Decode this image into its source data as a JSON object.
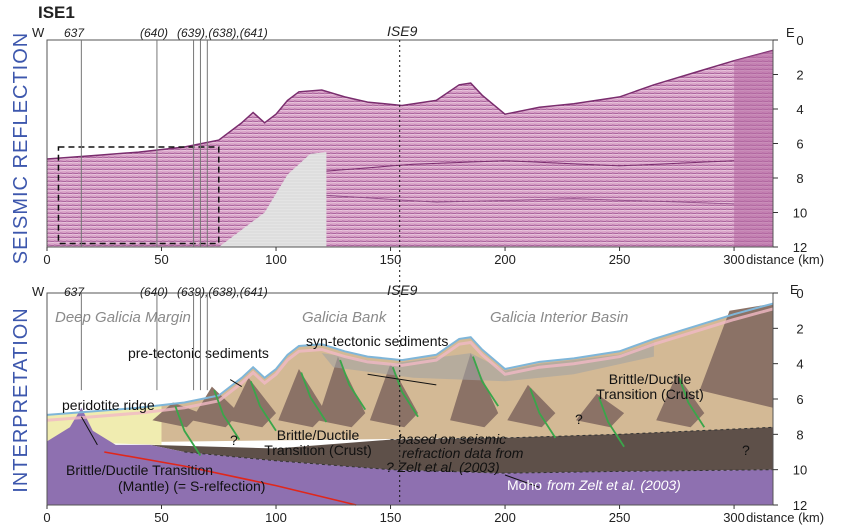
{
  "title": "ISE1",
  "ends": {
    "west": "W",
    "east": "E"
  },
  "wells": [
    "637",
    "(640)",
    "(639),(638),(641)"
  ],
  "profile": "ISE9",
  "x_axis": {
    "lim": [
      0,
      317
    ],
    "ticks": [
      0,
      50,
      100,
      150,
      200,
      250,
      300
    ],
    "label": "distance (km)"
  },
  "y_axis": {
    "lim": [
      0,
      12
    ],
    "ticks": [
      0,
      2,
      4,
      6,
      8,
      10,
      12
    ]
  },
  "panels": [
    "SEISMIC REFLECTION",
    "INTERPRETATION"
  ],
  "interpretation": {
    "regions": [
      "Deep Galicia Margin",
      "Galicia Bank",
      "Galicia Interior Basin"
    ],
    "pre_tectonic": "pre-tectonic sediments",
    "syn_tectonic": "syn-tectonic sediments",
    "ridge": "peridotite ridge",
    "crust_transition": [
      "Brittle/Ductile",
      "Transition (Crust)"
    ],
    "refraction_note": [
      "based on seismic",
      "refraction data from",
      "? Zelt et al. (2003)"
    ],
    "mantle_transition": [
      "Brittle/Ductile Transition",
      "(Mantle) (= S-relfection)"
    ],
    "moho": "Moho",
    "moho_source": "from Zelt et al. (2003)",
    "unknown": "?"
  }
}
